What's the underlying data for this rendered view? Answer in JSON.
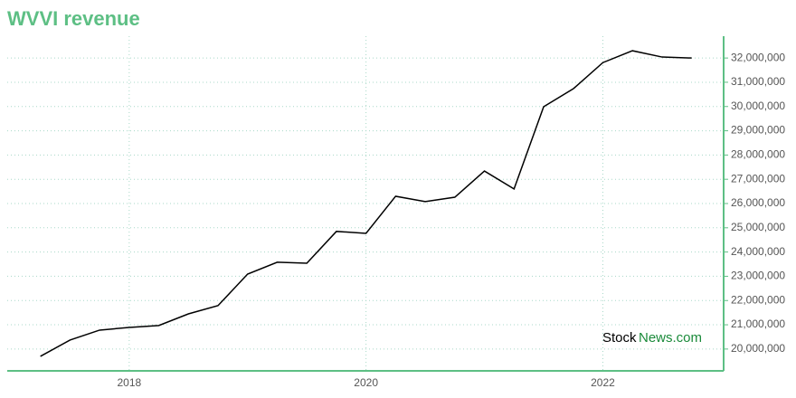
{
  "chart_data": {
    "type": "line",
    "title": "WVVI revenue",
    "x": [
      2017.25,
      2017.5,
      2017.75,
      2018,
      2018.25,
      2018.5,
      2018.75,
      2019,
      2019.25,
      2019.5,
      2019.75,
      2020,
      2020.25,
      2020.5,
      2020.75,
      2021,
      2021.25,
      2021.5,
      2021.75,
      2022,
      2022.25,
      2022.5,
      2022.75
    ],
    "series": [
      {
        "color": "#000000",
        "values": [
          19700000,
          20370000,
          20780000,
          20890000,
          20970000,
          21450000,
          21790000,
          23090000,
          23580000,
          23540000,
          24850000,
          24770000,
          26300000,
          26080000,
          26260000,
          27340000,
          26600000,
          29990000,
          30730000,
          31810000,
          32300000,
          32040000,
          32000000
        ]
      }
    ],
    "xlim": [
      2016.97,
      2023.02
    ],
    "xticks": [
      2018,
      2020,
      2022
    ],
    "ylim": [
      19100000,
      32900000
    ],
    "yticks": [
      {
        "value": 20000000,
        "label": "20,000,000"
      },
      {
        "value": 21000000,
        "label": "21,000,000"
      },
      {
        "value": 22000000,
        "label": "22,000,000"
      },
      {
        "value": 23000000,
        "label": "23,000,000"
      },
      {
        "value": 24000000,
        "label": "24,000,000"
      },
      {
        "value": 25000000,
        "label": "25,000,000"
      },
      {
        "value": 26000000,
        "label": "26,000,000"
      },
      {
        "value": 27000000,
        "label": "27,000,000"
      },
      {
        "value": 28000000,
        "label": "28,000,000"
      },
      {
        "value": 29000000,
        "label": "29,000,000"
      },
      {
        "value": 30000000,
        "label": "30,000,000"
      },
      {
        "value": 31000000,
        "label": "31,000,000"
      },
      {
        "value": 32000000,
        "label": "32,000,000"
      }
    ],
    "grid": true,
    "axis_color": "#5dbf84",
    "watermark": [
      "Stock",
      "News.com"
    ]
  }
}
